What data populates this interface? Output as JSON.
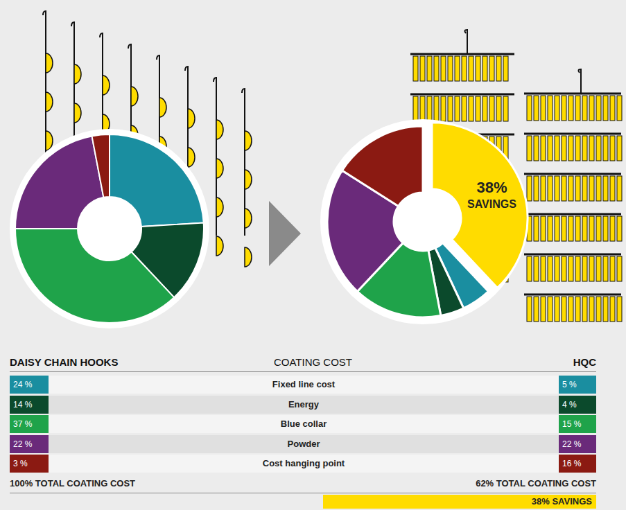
{
  "chart_data": [
    {
      "type": "pie",
      "categories": [
        "Fixed line cost",
        "Energy",
        "Blue collar",
        "Powder",
        "Cost hanging point"
      ],
      "values": [
        24,
        14,
        37,
        22,
        3
      ],
      "value_labels": [
        "24 %",
        "14 %",
        "37 %",
        "22 %",
        "3 %"
      ],
      "colors": [
        "#1a8ea0",
        "#0b4a2c",
        "#1fa34a",
        "#6a2a7a",
        "#8b1a12"
      ]
    },
    {
      "type": "pie",
      "categories": [
        "Fixed line cost",
        "Energy",
        "Blue collar",
        "Powder",
        "Cost hanging point"
      ],
      "values": [
        5,
        4,
        15,
        22,
        16
      ],
      "value_labels": [
        "5 %",
        "4 %",
        "15 %",
        "22 %",
        "16 %"
      ],
      "colors": [
        "#1a8ea0",
        "#0b4a2c",
        "#1fa34a",
        "#6a2a7a",
        "#8b1a12"
      ],
      "highlight": {
        "value": 38,
        "label": [
          "38%",
          "SAVINGS"
        ],
        "color": "#ffdc00"
      }
    }
  ],
  "table": {
    "header": {
      "left": "DAISY CHAIN HOOKS",
      "center": "COATING COST",
      "right": "HQC"
    },
    "footer": {
      "left": "100% TOTAL COATING COST",
      "right": "62% TOTAL COATING COST",
      "savings": "38% SAVINGS"
    }
  }
}
